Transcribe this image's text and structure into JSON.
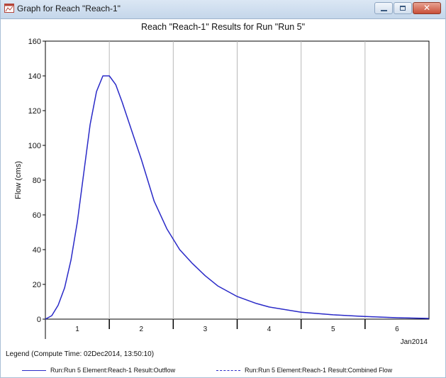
{
  "window": {
    "title": "Graph for Reach \"Reach-1\"",
    "controls": {
      "minimize": "",
      "maximize": "",
      "close": "✕"
    }
  },
  "legend": {
    "title": "Legend (Compute Time: 02Dec2014, 13:50:10)",
    "items": [
      {
        "label": "Run:Run 5 Element:Reach-1 Result:Outflow",
        "style": "solid",
        "color": "#2b2bc8"
      },
      {
        "label": "Run:Run 5 Element:Reach-1 Result:Combined Flow",
        "style": "dashed",
        "color": "#2b2bc8"
      }
    ]
  },
  "chart_data": {
    "type": "line",
    "title": "Reach \"Reach-1\" Results for Run \"Run 5\"",
    "ylabel": "Flow (cms)",
    "xlabel": "",
    "date_label": "Jan2014",
    "xlim": [
      0.5,
      6.5
    ],
    "ylim": [
      0,
      160
    ],
    "yticks": [
      0,
      20,
      40,
      60,
      80,
      100,
      120,
      140,
      160
    ],
    "xticks": [
      1,
      2,
      3,
      4,
      5,
      6
    ],
    "grid": true,
    "series": [
      {
        "name": "Run:Run 5 Element:Reach-1 Result:Outflow",
        "style": "solid",
        "color": "#2b2bc8",
        "x": [
          0.5,
          0.6,
          0.7,
          0.8,
          0.9,
          1.0,
          1.1,
          1.2,
          1.3,
          1.4,
          1.5,
          1.6,
          1.7,
          1.8,
          1.9,
          2.0,
          2.1,
          2.2,
          2.4,
          2.6,
          2.8,
          3.0,
          3.2,
          3.5,
          3.8,
          4.0,
          4.5,
          5.0,
          5.5,
          6.0,
          6.5
        ],
        "y": [
          0,
          2,
          8,
          18,
          34,
          56,
          84,
          112,
          131,
          140,
          140,
          135,
          125,
          114,
          103,
          92,
          80,
          68,
          52,
          40,
          32,
          25,
          19,
          13,
          9,
          7,
          4,
          2.5,
          1.5,
          0.8,
          0.4
        ]
      },
      {
        "name": "Run:Run 5 Element:Reach-1 Result:Combined Flow",
        "style": "dashed",
        "color": "#2b2bc8",
        "x": [
          0.5,
          0.6,
          0.7,
          0.8,
          0.9,
          1.0,
          1.1,
          1.2,
          1.3,
          1.4,
          1.5,
          1.6,
          1.7,
          1.8,
          1.9,
          2.0,
          2.1,
          2.2,
          2.4,
          2.6,
          2.8,
          3.0,
          3.2,
          3.5,
          3.8,
          4.0,
          4.5,
          5.0,
          5.5,
          6.0,
          6.5
        ],
        "y": [
          0,
          2,
          8,
          18,
          34,
          56,
          84,
          112,
          131,
          140,
          140,
          135,
          125,
          114,
          103,
          92,
          80,
          68,
          52,
          40,
          32,
          25,
          19,
          13,
          9,
          7,
          4,
          2.5,
          1.5,
          0.8,
          0.4
        ]
      }
    ]
  }
}
